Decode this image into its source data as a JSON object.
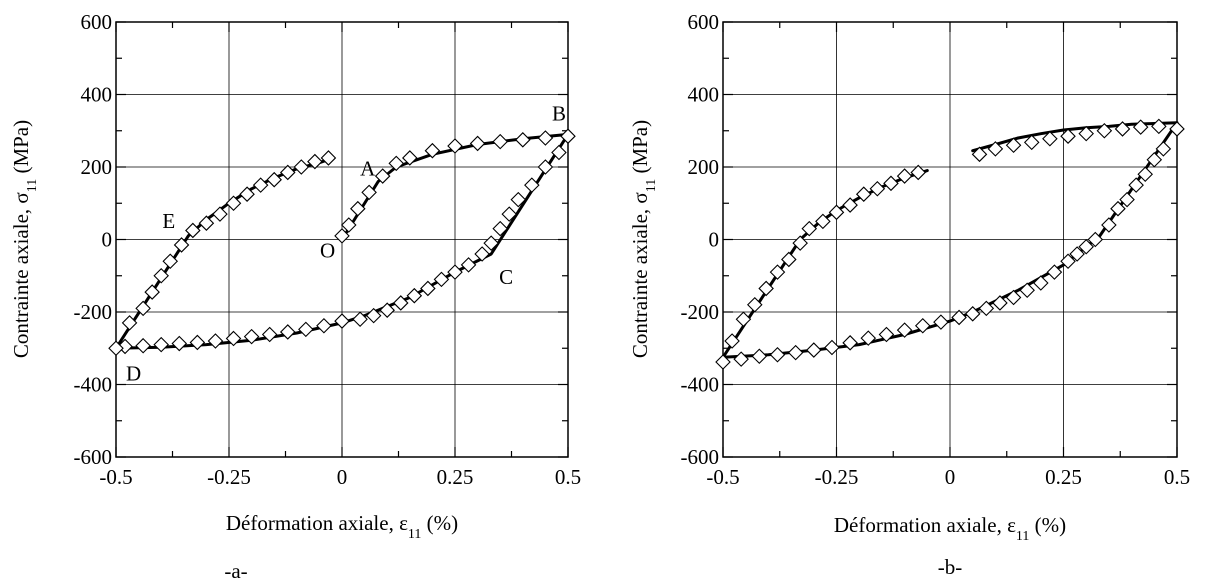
{
  "chart_data": [
    {
      "type": "line",
      "caption": "-a-",
      "xlabel": {
        "main": "Déformation axiale, ε",
        "sub": "11",
        "unit": " (%)"
      },
      "ylabel": {
        "main": "Contrainte axiale, σ",
        "sub": "11",
        "unit": " (MPa)"
      },
      "xlim": [
        -0.5,
        0.5
      ],
      "ylim": [
        -600,
        600
      ],
      "xticks": [
        -0.5,
        -0.25,
        0,
        0.25,
        0.5
      ],
      "xtick_labels": [
        "-0.5",
        "-0.25",
        "0",
        "0.25",
        "0.5"
      ],
      "yticks": [
        -600,
        -400,
        -200,
        0,
        200,
        400,
        600
      ],
      "ytick_labels": [
        "-600",
        "-400",
        "-200",
        "0",
        "200",
        "400",
        "600"
      ],
      "grid": true,
      "point_labels": [
        {
          "text": "O",
          "x": 0.0,
          "y": 0
        },
        {
          "text": "A",
          "x": 0.08,
          "y": 160
        },
        {
          "text": "B",
          "x": 0.5,
          "y": 290
        },
        {
          "text": "C",
          "x": 0.33,
          "y": -40
        },
        {
          "text": "D",
          "x": -0.5,
          "y": -300
        },
        {
          "text": "E",
          "x": -0.34,
          "y": 10
        }
      ],
      "series": [
        {
          "style": "line",
          "segments": [
            [
              [
                0,
                0
              ],
              [
                0.08,
                160
              ],
              [
                0.12,
                200
              ],
              [
                0.2,
                235
              ],
              [
                0.3,
                262
              ],
              [
                0.4,
                278
              ],
              [
                0.5,
                290
              ]
            ],
            [
              [
                0.5,
                290
              ],
              [
                0.33,
                -40
              ],
              [
                0.25,
                -90
              ],
              [
                0.15,
                -160
              ],
              [
                0.05,
                -210
              ],
              [
                0,
                -230
              ],
              [
                -0.1,
                -258
              ],
              [
                -0.2,
                -278
              ],
              [
                -0.3,
                -290
              ],
              [
                -0.4,
                -297
              ],
              [
                -0.5,
                -300
              ]
            ],
            [
              [
                -0.5,
                -300
              ],
              [
                -0.34,
                10
              ],
              [
                -0.3,
                55
              ],
              [
                -0.25,
                100
              ],
              [
                -0.2,
                140
              ],
              [
                -0.15,
                170
              ],
              [
                -0.1,
                195
              ],
              [
                -0.05,
                212
              ],
              [
                -0.02,
                225
              ]
            ]
          ]
        },
        {
          "style": "marker",
          "marker": "diamond",
          "points": [
            [
              0,
              10
            ],
            [
              0.015,
              40
            ],
            [
              0.035,
              85
            ],
            [
              0.06,
              130
            ],
            [
              0.09,
              175
            ],
            [
              0.12,
              210
            ],
            [
              0.15,
              225
            ],
            [
              0.2,
              245
            ],
            [
              0.25,
              258
            ],
            [
              0.3,
              265
            ],
            [
              0.35,
              270
            ],
            [
              0.4,
              275
            ],
            [
              0.45,
              280
            ],
            [
              0.5,
              285
            ],
            [
              0.48,
              240
            ],
            [
              0.45,
              200
            ],
            [
              0.42,
              150
            ],
            [
              0.39,
              110
            ],
            [
              0.37,
              70
            ],
            [
              0.35,
              30
            ],
            [
              0.33,
              -10
            ],
            [
              0.31,
              -40
            ],
            [
              0.28,
              -70
            ],
            [
              0.25,
              -90
            ],
            [
              0.22,
              -110
            ],
            [
              0.19,
              -135
            ],
            [
              0.16,
              -155
            ],
            [
              0.13,
              -175
            ],
            [
              0.1,
              -195
            ],
            [
              0.07,
              -210
            ],
            [
              0.04,
              -220
            ],
            [
              0,
              -225
            ],
            [
              -0.04,
              -238
            ],
            [
              -0.08,
              -248
            ],
            [
              -0.12,
              -255
            ],
            [
              -0.16,
              -262
            ],
            [
              -0.2,
              -268
            ],
            [
              -0.24,
              -273
            ],
            [
              -0.28,
              -280
            ],
            [
              -0.32,
              -284
            ],
            [
              -0.36,
              -287
            ],
            [
              -0.4,
              -290
            ],
            [
              -0.44,
              -293
            ],
            [
              -0.48,
              -295
            ],
            [
              -0.5,
              -300
            ],
            [
              -0.47,
              -230
            ],
            [
              -0.44,
              -190
            ],
            [
              -0.42,
              -145
            ],
            [
              -0.4,
              -100
            ],
            [
              -0.38,
              -60
            ],
            [
              -0.355,
              -15
            ],
            [
              -0.33,
              25
            ],
            [
              -0.3,
              45
            ],
            [
              -0.27,
              70
            ],
            [
              -0.24,
              100
            ],
            [
              -0.21,
              125
            ],
            [
              -0.18,
              150
            ],
            [
              -0.15,
              165
            ],
            [
              -0.12,
              185
            ],
            [
              -0.09,
              200
            ],
            [
              -0.06,
              215
            ],
            [
              -0.03,
              225
            ]
          ]
        }
      ]
    },
    {
      "type": "line",
      "caption": "-b-",
      "xlabel": {
        "main": "Déformation axiale, ε",
        "sub": "11",
        "unit": " (%)"
      },
      "ylabel": {
        "main": "Contrainte axiale, σ",
        "sub": "11",
        "unit": " (MPa)"
      },
      "xlim": [
        -0.5,
        0.5
      ],
      "ylim": [
        -600,
        600
      ],
      "xticks": [
        -0.5,
        -0.25,
        0,
        0.25,
        0.5
      ],
      "xtick_labels": [
        "-0.5",
        "-0.25",
        "0",
        "0.25",
        "0.5"
      ],
      "yticks": [
        -600,
        -400,
        -200,
        0,
        200,
        400,
        600
      ],
      "ytick_labels": [
        "-600",
        "-400",
        "-200",
        "0",
        "200",
        "400",
        "600"
      ],
      "grid": true,
      "point_labels": [],
      "series": [
        {
          "style": "line",
          "segments": [
            [
              [
                0.05,
                245
              ],
              [
                0.1,
                262
              ],
              [
                0.15,
                280
              ],
              [
                0.2,
                292
              ],
              [
                0.25,
                302
              ],
              [
                0.3,
                308
              ],
              [
                0.35,
                312
              ],
              [
                0.4,
                318
              ],
              [
                0.45,
                320
              ],
              [
                0.5,
                322
              ]
            ],
            [
              [
                0.5,
                322
              ],
              [
                0.33,
                10
              ],
              [
                0.25,
                -70
              ],
              [
                0.15,
                -140
              ],
              [
                0.05,
                -200
              ],
              [
                0,
                -225
              ],
              [
                -0.1,
                -262
              ],
              [
                -0.2,
                -290
              ],
              [
                -0.3,
                -305
              ],
              [
                -0.4,
                -318
              ],
              [
                -0.5,
                -325
              ]
            ],
            [
              [
                -0.5,
                -325
              ],
              [
                -0.33,
                0
              ],
              [
                -0.29,
                45
              ],
              [
                -0.25,
                80
              ],
              [
                -0.2,
                115
              ],
              [
                -0.15,
                145
              ],
              [
                -0.1,
                170
              ],
              [
                -0.05,
                190
              ]
            ]
          ]
        },
        {
          "style": "marker",
          "marker": "diamond",
          "points": [
            [
              0.065,
              235
            ],
            [
              0.1,
              250
            ],
            [
              0.14,
              260
            ],
            [
              0.18,
              268
            ],
            [
              0.22,
              278
            ],
            [
              0.26,
              285
            ],
            [
              0.3,
              292
            ],
            [
              0.34,
              300
            ],
            [
              0.38,
              305
            ],
            [
              0.42,
              310
            ],
            [
              0.46,
              312
            ],
            [
              0.5,
              305
            ],
            [
              0.47,
              250
            ],
            [
              0.45,
              220
            ],
            [
              0.43,
              180
            ],
            [
              0.41,
              150
            ],
            [
              0.39,
              110
            ],
            [
              0.37,
              85
            ],
            [
              0.35,
              40
            ],
            [
              0.32,
              0
            ],
            [
              0.3,
              -20
            ],
            [
              0.28,
              -40
            ],
            [
              0.26,
              -60
            ],
            [
              0.23,
              -90
            ],
            [
              0.2,
              -120
            ],
            [
              0.17,
              -140
            ],
            [
              0.14,
              -160
            ],
            [
              0.11,
              -175
            ],
            [
              0.08,
              -190
            ],
            [
              0.05,
              -205
            ],
            [
              0.02,
              -215
            ],
            [
              -0.02,
              -228
            ],
            [
              -0.06,
              -238
            ],
            [
              -0.1,
              -250
            ],
            [
              -0.14,
              -262
            ],
            [
              -0.18,
              -272
            ],
            [
              -0.22,
              -285
            ],
            [
              -0.26,
              -298
            ],
            [
              -0.3,
              -305
            ],
            [
              -0.34,
              -312
            ],
            [
              -0.38,
              -318
            ],
            [
              -0.42,
              -322
            ],
            [
              -0.46,
              -330
            ],
            [
              -0.5,
              -338
            ],
            [
              -0.48,
              -280
            ],
            [
              -0.455,
              -220
            ],
            [
              -0.43,
              -180
            ],
            [
              -0.405,
              -135
            ],
            [
              -0.38,
              -90
            ],
            [
              -0.355,
              -55
            ],
            [
              -0.33,
              -10
            ],
            [
              -0.31,
              30
            ],
            [
              -0.28,
              50
            ],
            [
              -0.25,
              75
            ],
            [
              -0.22,
              95
            ],
            [
              -0.19,
              125
            ],
            [
              -0.16,
              140
            ],
            [
              -0.13,
              155
            ],
            [
              -0.1,
              175
            ],
            [
              -0.07,
              185
            ]
          ]
        }
      ]
    }
  ]
}
